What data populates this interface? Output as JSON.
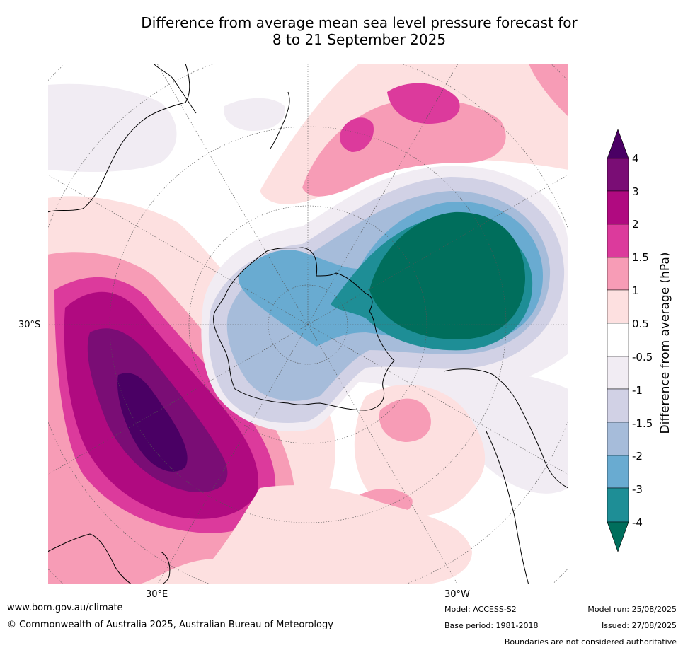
{
  "title_line1": "Difference from average mean sea level pressure forecast for",
  "title_line2": "8 to 21 September 2025",
  "map": {
    "projection": "south-polar-stereographic",
    "tick_labels": {
      "lat_30s": "30°S",
      "lon_30e": "30°E",
      "lon_30w": "30°W"
    },
    "regions": [
      {
        "name": "strong-positive-indian-ocean",
        "category": "4"
      },
      {
        "name": "positive-south-pacific-north",
        "category": "2"
      },
      {
        "name": "negative-south-pacific",
        "category": "-4"
      },
      {
        "name": "negative-antarctica",
        "category": "-2"
      },
      {
        "name": "positive-south-atlantic",
        "category": "1.5"
      }
    ]
  },
  "colorbar": {
    "title": "Difference from average (hPa)",
    "labels": [
      "4",
      "3",
      "2",
      "1.5",
      "1",
      "0.5",
      "-0.5",
      "-1",
      "-1.5",
      "-2",
      "-3",
      "-4"
    ],
    "colors": [
      "#4a0064",
      "#7a0d75",
      "#b00a80",
      "#dc3a9c",
      "#f79cb6",
      "#fde0e0",
      "#ffffff",
      "#f1ecf3",
      "#d1d1e5",
      "#a6bcda",
      "#69abd1",
      "#1e8e96",
      "#006e5c"
    ]
  },
  "footer": {
    "url": "www.bom.gov.au/climate",
    "copyright": "© Commonwealth of Australia 2025, Australian Bureau of Meteorology",
    "model": "Model: ACCESS-S2",
    "base_period": "Base period: 1981-2018",
    "model_run": "Model run: 25/08/2025",
    "issued": "Issued: 27/08/2025",
    "disclaimer": "Boundaries are not considered authoritative"
  }
}
